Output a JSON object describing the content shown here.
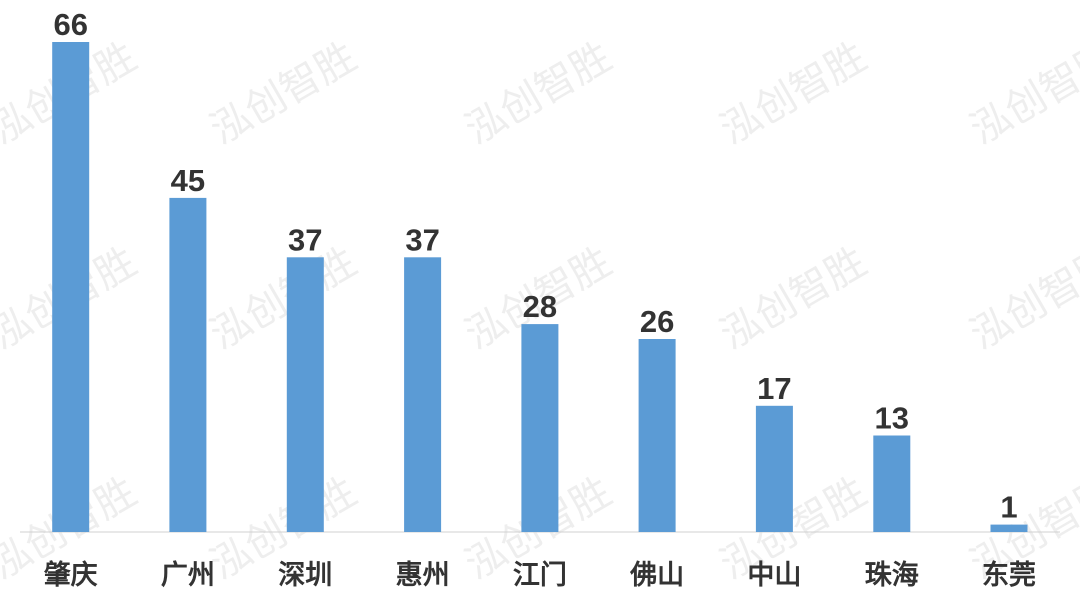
{
  "watermark": {
    "text": "泓创智胜"
  },
  "chart_data": {
    "type": "bar",
    "categories": [
      "肇庆",
      "广州",
      "深圳",
      "惠州",
      "江门",
      "佛山",
      "中山",
      "珠海",
      "东莞"
    ],
    "values": [
      66,
      45,
      37,
      37,
      28,
      26,
      17,
      13,
      1
    ],
    "value_labels": [
      "66",
      "45",
      "37",
      "37",
      "28",
      "26",
      "17",
      "13",
      "1"
    ],
    "title": "",
    "xlabel": "",
    "ylabel": "",
    "ylim": [
      0,
      66
    ],
    "grid": false,
    "legend": "none",
    "bar_color": "#5b9bd5",
    "label_color": "#333333"
  }
}
